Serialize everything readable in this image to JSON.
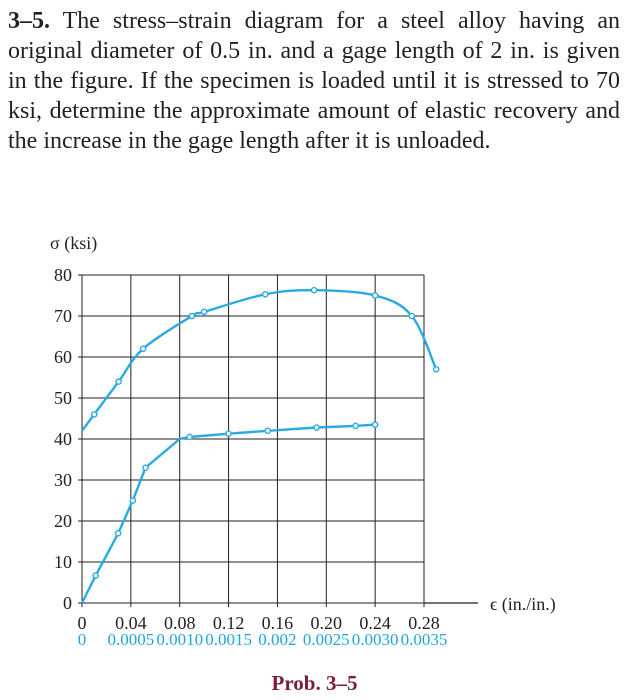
{
  "problem": {
    "number": "3–5.",
    "text": "The stress–strain diagram for a steel alloy having an original diameter of 0.5 in. and a gage length of 2 in. is given in the figure. If the specimen is loaded until it is stressed to 70 ksi, determine the approximate amount of elastic recovery and the increase in the gage length after it is unloaded."
  },
  "caption": "Prob. 3–5",
  "chart_data": {
    "type": "line",
    "ylabel": "σ (ksi)",
    "xlabel": "ϵ (in./in.)",
    "ylim": [
      0,
      80
    ],
    "yticks": [
      "0",
      "10",
      "20",
      "30",
      "40",
      "50",
      "60",
      "70",
      "80"
    ],
    "xticks_upper": [
      "0",
      "0.04",
      "0.08",
      "0.12",
      "0.16",
      "0.20",
      "0.24",
      "0.28"
    ],
    "xticks_lower": [
      "0",
      "0.0005",
      "0.0010",
      "0.0015",
      "0.002",
      "0.0025",
      "0.0030",
      "0.0035"
    ],
    "grid": true,
    "line_color": "#29abe2",
    "series": [
      {
        "scale": "upper",
        "points": [
          [
            0,
            42
          ],
          [
            0.01,
            46
          ],
          [
            0.03,
            54
          ],
          [
            0.05,
            62
          ],
          [
            0.09,
            70
          ],
          [
            0.1,
            71
          ],
          [
            0.15,
            75.3
          ],
          [
            0.19,
            76.3
          ],
          [
            0.24,
            75
          ],
          [
            0.27,
            70
          ],
          [
            0.29,
            57
          ]
        ]
      },
      {
        "scale": "lower",
        "points": [
          [
            0,
            0
          ],
          [
            0.00014,
            6.7
          ],
          [
            0.00037,
            17
          ],
          [
            0.00052,
            25
          ],
          [
            0.00065,
            33
          ],
          [
            0.001,
            40
          ],
          [
            0.0011,
            40.5
          ],
          [
            0.0015,
            41.3
          ],
          [
            0.0019,
            42
          ],
          [
            0.0024,
            42.8
          ],
          [
            0.0028,
            43.2
          ],
          [
            0.003,
            43.5
          ]
        ]
      }
    ]
  }
}
